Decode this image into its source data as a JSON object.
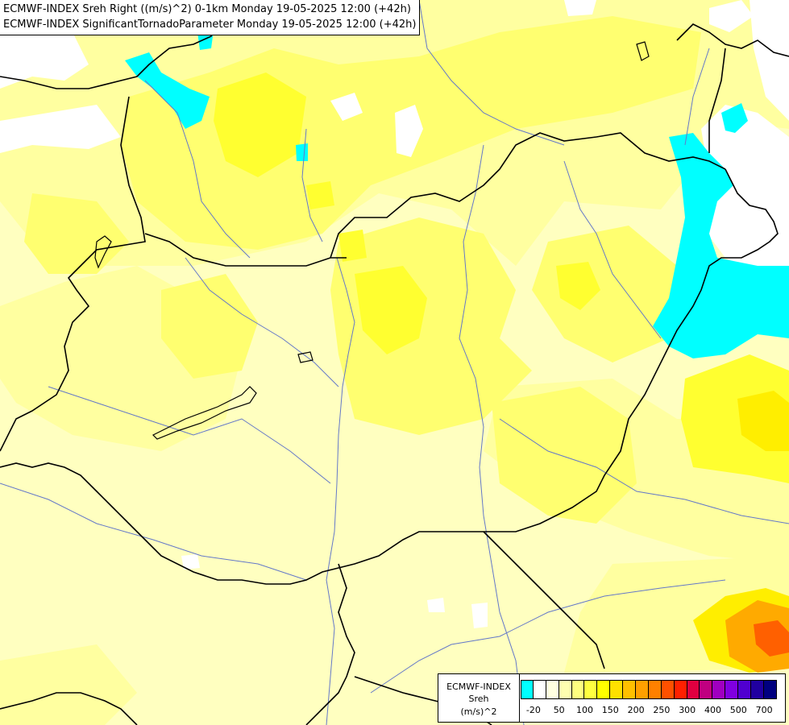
{
  "title": {
    "line1": "ECMWF-INDEX Sreh Right ((m/s)^2) 0-1km Monday 19-05-2025 12:00 (+42h)",
    "line2": "ECMWF-INDEX SignificantTornadoParameter Monday 19-05-2025 12:00 (+42h)"
  },
  "legend": {
    "line1": "ECMWF-INDEX",
    "line2": "Sreh",
    "line3": "(m/s)^2",
    "colors": [
      "#00ffff",
      "#ffffff",
      "#ffffe0",
      "#ffffb0",
      "#ffff80",
      "#ffff40",
      "#ffff00",
      "#ffe000",
      "#ffc000",
      "#ffa000",
      "#ff8000",
      "#ff5000",
      "#ff2000",
      "#e00040",
      "#c00080",
      "#a000c0",
      "#8000e0",
      "#5000d0",
      "#2000a0",
      "#000080"
    ],
    "ticks": [
      "-20",
      "50",
      "100",
      "150",
      "200",
      "250",
      "300",
      "400",
      "500",
      "700"
    ]
  },
  "colors": {
    "base": "#ffffc0",
    "light": "#ffffa0",
    "mid": "#ffff70",
    "strong": "#ffff30",
    "deep": "#ffee00",
    "orange": "#ffaa00",
    "hot": "#ff6000",
    "cyan": "#00ffff",
    "white": "#ffffff",
    "border": "#000000",
    "river": "#6478c8"
  }
}
